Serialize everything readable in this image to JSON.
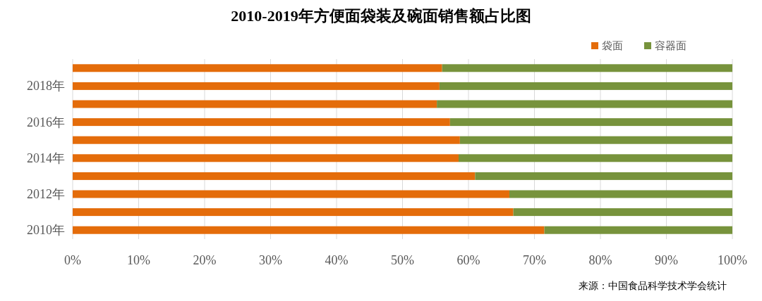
{
  "chart_data": {
    "type": "bar",
    "orientation": "horizontal",
    "stacked": true,
    "title": "2010-2019年方便面袋装及碗面销售额占比图",
    "categories": [
      null,
      "2018年",
      null,
      "2016年",
      null,
      "2014年",
      null,
      "2012年",
      null,
      "2010年"
    ],
    "series": [
      {
        "name": "袋面",
        "color": "#e46c0a",
        "values": [
          56.0,
          55.6,
          55.2,
          57.2,
          58.7,
          58.5,
          61.0,
          66.2,
          66.8,
          71.5
        ]
      },
      {
        "name": "容器面",
        "color": "#77933c",
        "values": [
          44.0,
          44.4,
          44.8,
          42.8,
          41.3,
          41.5,
          39.0,
          33.8,
          33.2,
          28.5
        ]
      }
    ],
    "xlim": [
      0,
      100
    ],
    "xticks": [
      {
        "value": 0,
        "label": "0%"
      },
      {
        "value": 10,
        "label": "10%"
      },
      {
        "value": 20,
        "label": "20%"
      },
      {
        "value": 30,
        "label": "30%"
      },
      {
        "value": 40,
        "label": "40%"
      },
      {
        "value": 50,
        "label": "50%"
      },
      {
        "value": 60,
        "label": "60%"
      },
      {
        "value": 70,
        "label": "70%"
      },
      {
        "value": 80,
        "label": "80%"
      },
      {
        "value": 90,
        "label": "90%"
      },
      {
        "value": 100,
        "label": "100%"
      }
    ],
    "grid": "x",
    "legend": "top right",
    "annotations": [
      "来源：中国食品科学技术学会统计"
    ]
  }
}
